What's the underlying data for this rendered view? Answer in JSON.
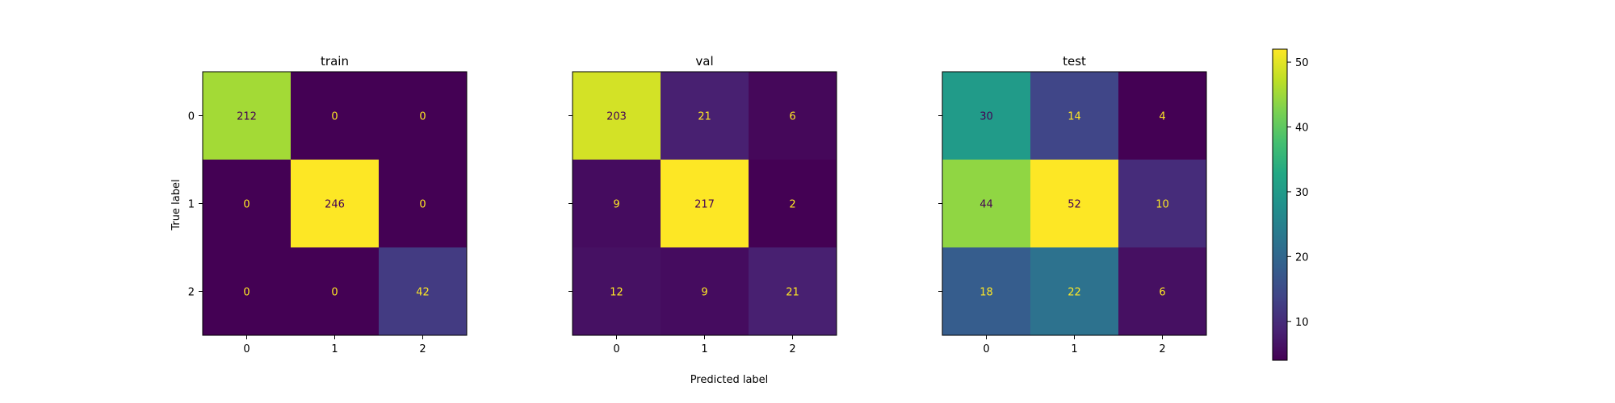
{
  "chart_data": {
    "type": "heatmap",
    "xlabel": "Predicted label",
    "ylabel": "True label",
    "classes": [
      "0",
      "1",
      "2"
    ],
    "panels": [
      {
        "title": "train",
        "matrix": [
          [
            212,
            0,
            0
          ],
          [
            0,
            246,
            0
          ],
          [
            0,
            0,
            42
          ]
        ]
      },
      {
        "title": "val",
        "matrix": [
          [
            203,
            21,
            6
          ],
          [
            9,
            217,
            2
          ],
          [
            12,
            9,
            21
          ]
        ]
      },
      {
        "title": "test",
        "matrix": [
          [
            30,
            14,
            4
          ],
          [
            44,
            52,
            10
          ],
          [
            18,
            22,
            6
          ]
        ]
      }
    ],
    "colormap": "viridis",
    "colorbar": {
      "vmin": 4,
      "vmax": 52,
      "ticks": [
        10,
        20,
        30,
        40,
        50
      ]
    },
    "text_color_on_dark": "#fde725",
    "text_color_on_light": "#440154"
  }
}
